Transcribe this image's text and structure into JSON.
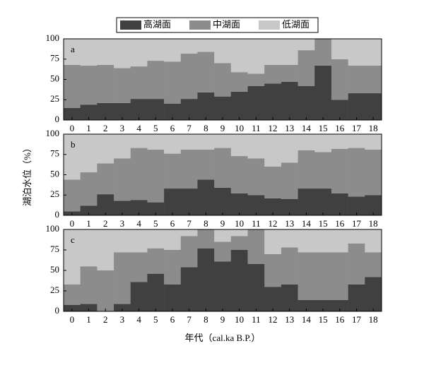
{
  "chart_data": [
    {
      "type": "bar",
      "stacked": true,
      "panel": "a",
      "categories": [
        "0",
        "1",
        "2",
        "3",
        "4",
        "5",
        "6",
        "7",
        "8",
        "9",
        "10",
        "11",
        "12",
        "13",
        "14",
        "15",
        "16",
        "17",
        "18"
      ],
      "series": [
        {
          "name": "高湖面",
          "color": "#404040",
          "values": [
            15,
            19,
            21,
            21,
            26,
            26,
            20,
            26,
            34,
            29,
            35,
            42,
            45,
            47,
            42,
            67,
            25,
            33,
            33
          ]
        },
        {
          "name": "中湖面",
          "color": "#8c8c8c",
          "values": [
            53,
            48,
            47,
            43,
            40,
            47,
            52,
            56,
            50,
            41,
            24,
            15,
            23,
            21,
            44,
            33,
            50,
            34,
            34
          ]
        },
        {
          "name": "低湖面",
          "color": "#c8c8c8",
          "values": [
            32,
            33,
            32,
            36,
            34,
            27,
            28,
            18,
            16,
            30,
            41,
            43,
            32,
            32,
            14,
            0,
            25,
            33,
            33
          ]
        }
      ],
      "ylim": [
        0,
        100
      ],
      "yticks": [
        0,
        25,
        50,
        75,
        100
      ]
    },
    {
      "type": "bar",
      "stacked": true,
      "panel": "b",
      "ylabel": "湖泊水位（%）",
      "categories": [
        "0",
        "1",
        "2",
        "3",
        "4",
        "5",
        "6",
        "7",
        "8",
        "9",
        "10",
        "11",
        "12",
        "13",
        "14",
        "15",
        "16",
        "17",
        "18"
      ],
      "series": [
        {
          "color": "#404040",
          "values": [
            5,
            12,
            26,
            18,
            19,
            16,
            33,
            33,
            44,
            34,
            27,
            25,
            21,
            20,
            33,
            33,
            27,
            23,
            25
          ]
        },
        {
          "color": "#8c8c8c",
          "values": [
            39,
            41,
            38,
            52,
            64,
            65,
            43,
            48,
            37,
            49,
            46,
            45,
            39,
            45,
            47,
            45,
            55,
            60,
            56
          ]
        },
        {
          "color": "#c8c8c8",
          "values": [
            56,
            47,
            36,
            30,
            17,
            19,
            24,
            19,
            19,
            17,
            27,
            30,
            40,
            35,
            20,
            22,
            18,
            17,
            19
          ]
        }
      ],
      "ylim": [
        0,
        100
      ],
      "yticks": [
        0,
        25,
        50,
        75,
        100
      ]
    },
    {
      "type": "bar",
      "stacked": true,
      "panel": "c",
      "xlabel": "年代（cal.ka B.P.）",
      "categories": [
        "0",
        "1",
        "2",
        "3",
        "4",
        "5",
        "6",
        "7",
        "8",
        "9",
        "10",
        "11",
        "12",
        "13",
        "14",
        "15",
        "16",
        "17",
        "18"
      ],
      "series": [
        {
          "color": "#404040",
          "values": [
            8,
            9,
            0,
            9,
            36,
            46,
            33,
            54,
            77,
            61,
            75,
            58,
            30,
            33,
            14,
            14,
            14,
            33,
            42
          ]
        },
        {
          "color": "#8c8c8c",
          "values": [
            25,
            46,
            50,
            63,
            36,
            31,
            42,
            38,
            23,
            24,
            17,
            42,
            40,
            45,
            58,
            58,
            58,
            50,
            30
          ]
        },
        {
          "color": "#c8c8c8",
          "values": [
            67,
            45,
            50,
            28,
            28,
            23,
            25,
            8,
            0,
            15,
            8,
            0,
            30,
            22,
            28,
            28,
            28,
            17,
            28
          ]
        }
      ],
      "ylim": [
        0,
        100
      ],
      "yticks": [
        0,
        25,
        50,
        75,
        100
      ]
    }
  ]
}
